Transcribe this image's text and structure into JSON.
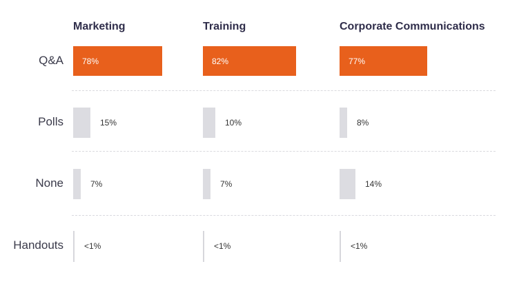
{
  "chart_data": {
    "type": "bar",
    "orientation": "horizontal",
    "categories": [
      "Q&A",
      "Polls",
      "None",
      "Handouts"
    ],
    "series": [
      {
        "name": "Marketing",
        "values": [
          78,
          15,
          7,
          0.5
        ],
        "labels": [
          "78%",
          "15%",
          "7%",
          "<1%"
        ]
      },
      {
        "name": "Training",
        "values": [
          82,
          10,
          7,
          0.5
        ],
        "labels": [
          "82%",
          "10%",
          "7%",
          "<1%"
        ]
      },
      {
        "name": "Corporate Communications",
        "values": [
          77,
          8,
          14,
          0.5
        ],
        "labels": [
          "77%",
          "8%",
          "14%",
          "<1%"
        ]
      }
    ],
    "highlight_category": "Q&A",
    "xlim": [
      0,
      100
    ],
    "title": "",
    "xlabel": "",
    "ylabel": ""
  },
  "colors": {
    "highlight": "#e8601c",
    "muted": "#dcdce1",
    "header_text": "#2f2d4a",
    "label_text": "#3a3a4a"
  }
}
